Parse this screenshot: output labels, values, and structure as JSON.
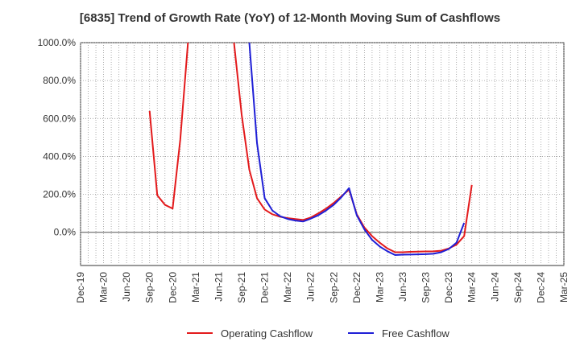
{
  "title": "[6835]  Trend of Growth Rate (YoY) of 12-Month Moving Sum of Cashflows",
  "chart_data": {
    "type": "line",
    "title": "[6835]  Trend of Growth Rate (YoY) of 12-Month Moving Sum of Cashflows",
    "xlabel": "",
    "ylabel": "",
    "x_ticks": [
      "Dec-19",
      "Mar-20",
      "Jun-20",
      "Sep-20",
      "Dec-20",
      "Mar-21",
      "Jun-21",
      "Sep-21",
      "Dec-21",
      "Mar-22",
      "Jun-22",
      "Sep-22",
      "Dec-22",
      "Mar-23",
      "Jun-23",
      "Sep-23",
      "Dec-23",
      "Mar-24",
      "Jun-24",
      "Sep-24",
      "Dec-24",
      "Mar-25"
    ],
    "y_ticks": [
      "0.0%",
      "200.0%",
      "400.0%",
      "600.0%",
      "800.0%",
      "1000.0%"
    ],
    "ylim": [
      -175,
      1000
    ],
    "grid": true,
    "legend_position": "bottom",
    "series": [
      {
        "name": "Operating Cashflow",
        "color": "#e31a1c",
        "points": [
          [
            "Sep-20",
            640
          ],
          [
            "Oct-20",
            195
          ],
          [
            "Nov-20",
            145
          ],
          [
            "Dec-20",
            125
          ],
          [
            "Jan-21",
            490
          ],
          [
            "Feb-21",
            1000
          ],
          null,
          [
            "Aug-21",
            1000
          ],
          [
            "Sep-21",
            620
          ],
          [
            "Oct-21",
            330
          ],
          [
            "Nov-21",
            180
          ],
          [
            "Dec-21",
            120
          ],
          [
            "Jan-22",
            95
          ],
          [
            "Feb-22",
            82
          ],
          [
            "Mar-22",
            75
          ],
          [
            "Apr-22",
            70
          ],
          [
            "May-22",
            65
          ],
          [
            "Jun-22",
            78
          ],
          [
            "Jul-22",
            100
          ],
          [
            "Aug-22",
            125
          ],
          [
            "Sep-22",
            155
          ],
          [
            "Oct-22",
            190
          ],
          [
            "Nov-22",
            225
          ],
          [
            "Dec-22",
            95
          ],
          [
            "Jan-23",
            25
          ],
          [
            "Feb-23",
            -20
          ],
          [
            "Mar-23",
            -55
          ],
          [
            "Apr-23",
            -85
          ],
          [
            "May-23",
            -105
          ],
          [
            "Jun-23",
            -105
          ],
          [
            "Jul-23",
            -103
          ],
          [
            "Aug-23",
            -102
          ],
          [
            "Sep-23",
            -101
          ],
          [
            "Oct-23",
            -100
          ],
          [
            "Nov-23",
            -97
          ],
          [
            "Dec-23",
            -85
          ],
          [
            "Jan-24",
            -65
          ],
          [
            "Feb-24",
            -20
          ],
          [
            "Mar-24",
            250
          ]
        ]
      },
      {
        "name": "Free Cashflow",
        "color": "#1f1fd6",
        "points": [
          [
            "Oct-21",
            1000
          ],
          [
            "Nov-21",
            470
          ],
          [
            "Dec-21",
            180
          ],
          [
            "Jan-22",
            115
          ],
          [
            "Feb-22",
            85
          ],
          [
            "Mar-22",
            70
          ],
          [
            "Apr-22",
            62
          ],
          [
            "May-22",
            57
          ],
          [
            "Jun-22",
            72
          ],
          [
            "Jul-22",
            90
          ],
          [
            "Aug-22",
            115
          ],
          [
            "Sep-22",
            145
          ],
          [
            "Oct-22",
            185
          ],
          [
            "Nov-22",
            233
          ],
          [
            "Dec-22",
            90
          ],
          [
            "Jan-23",
            15
          ],
          [
            "Feb-23",
            -40
          ],
          [
            "Mar-23",
            -75
          ],
          [
            "Apr-23",
            -100
          ],
          [
            "May-23",
            -120
          ],
          [
            "Jun-23",
            -118
          ],
          [
            "Jul-23",
            -117
          ],
          [
            "Aug-23",
            -116
          ],
          [
            "Sep-23",
            -115
          ],
          [
            "Oct-23",
            -113
          ],
          [
            "Nov-23",
            -105
          ],
          [
            "Dec-23",
            -88
          ],
          [
            "Jan-24",
            -55
          ],
          [
            "Feb-24",
            50
          ]
        ]
      }
    ]
  }
}
